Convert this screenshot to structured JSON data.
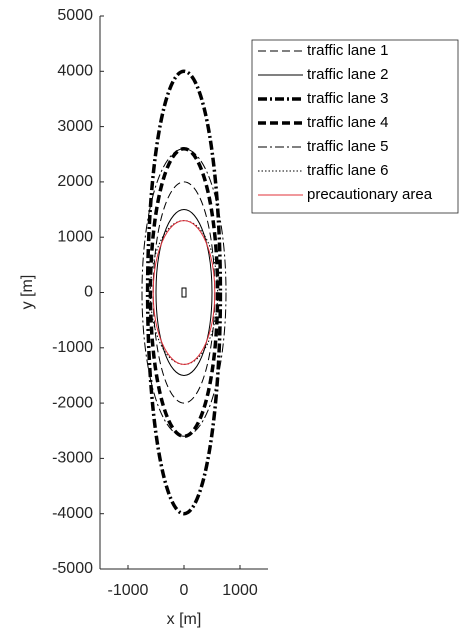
{
  "chart_data": {
    "type": "ellipse",
    "xlabel": "x [m]",
    "ylabel": "y [m]",
    "xlim": [
      -1500,
      1500
    ],
    "ylim": [
      -5000,
      5000
    ],
    "xticks": [
      -1000,
      0,
      1000
    ],
    "yticks": [
      -5000,
      -4000,
      -3000,
      -2000,
      -1000,
      0,
      1000,
      2000,
      3000,
      4000,
      5000
    ],
    "legend": "upper right",
    "series": [
      {
        "name": "traffic lane 1",
        "color": "#000000",
        "line_style": "--",
        "line_width": 1,
        "x_radius": 550,
        "y_radius": 2000
      },
      {
        "name": "traffic lane 2",
        "color": "#000000",
        "line_style": "-",
        "line_width": 1,
        "x_radius": 500,
        "y_radius": 1500
      },
      {
        "name": "traffic lane 3",
        "color": "#000000",
        "line_style": "-.",
        "line_width": 3.5,
        "x_radius": 650,
        "y_radius": 4000
      },
      {
        "name": "traffic lane 4",
        "color": "#000000",
        "line_style": "--",
        "line_width": 3.5,
        "x_radius": 600,
        "y_radius": 2600
      },
      {
        "name": "traffic lane 5",
        "color": "#000000",
        "line_style": "-.",
        "line_width": 1,
        "x_radius": 750,
        "y_radius": 2600
      },
      {
        "name": "traffic lane 6",
        "color": "#000000",
        "line_style": ":",
        "line_width": 1,
        "x_radius": 600,
        "y_radius": 1300
      },
      {
        "name": "precautionary area",
        "color": "#e0303a",
        "line_style": "-",
        "line_width": 1,
        "x_radius": 550,
        "y_radius": 1300
      }
    ]
  }
}
